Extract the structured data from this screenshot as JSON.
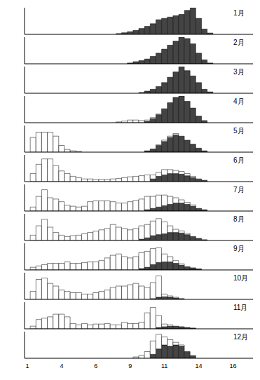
{
  "chart_data": [
    {
      "type": "bar",
      "title": "1月",
      "stacked": true,
      "tick_labels": false,
      "ylim": [
        0,
        100
      ],
      "series": [
        {
          "color": "#444444",
          "values": [
            0,
            0,
            0,
            0,
            0,
            0,
            0,
            0,
            0,
            0,
            0,
            0,
            0,
            0,
            0,
            0,
            3,
            6,
            10,
            15,
            22,
            30,
            40,
            55,
            60,
            65,
            70,
            75,
            90,
            100,
            60,
            20,
            5,
            0,
            0,
            0,
            0,
            0,
            0,
            0
          ]
        },
        {
          "color": "#ffffff",
          "values": [
            0,
            0,
            0,
            0,
            0,
            0,
            0,
            0,
            0,
            0,
            0,
            0,
            0,
            0,
            0,
            0,
            0,
            0,
            0,
            0,
            0,
            0,
            0,
            0,
            0,
            0,
            0,
            0,
            0,
            0,
            0,
            0,
            0,
            0,
            0,
            0,
            0,
            0,
            0,
            0
          ]
        }
      ]
    },
    {
      "type": "bar",
      "title": "2月",
      "stacked": true,
      "tick_labels": false,
      "ylim": [
        0,
        100
      ],
      "series": [
        {
          "color": "#444444",
          "values": [
            0,
            0,
            0,
            0,
            0,
            0,
            0,
            0,
            0,
            0,
            0,
            0,
            0,
            0,
            0,
            0,
            0,
            0,
            3,
            8,
            12,
            18,
            28,
            40,
            55,
            70,
            85,
            100,
            95,
            75,
            40,
            15,
            3,
            0,
            0,
            0,
            0,
            0,
            0,
            0
          ]
        },
        {
          "color": "#ffffff",
          "values": [
            0,
            0,
            0,
            0,
            0,
            0,
            0,
            0,
            0,
            0,
            0,
            0,
            0,
            0,
            0,
            0,
            0,
            0,
            0,
            0,
            0,
            0,
            0,
            0,
            0,
            0,
            0,
            0,
            0,
            0,
            0,
            0,
            0,
            0,
            0,
            0,
            0,
            0,
            0,
            0
          ]
        }
      ]
    },
    {
      "type": "bar",
      "title": "3月",
      "stacked": true,
      "tick_labels": false,
      "ylim": [
        0,
        100
      ],
      "series": [
        {
          "color": "#444444",
          "values": [
            0,
            0,
            0,
            0,
            0,
            0,
            0,
            0,
            0,
            0,
            0,
            0,
            0,
            0,
            0,
            0,
            0,
            0,
            0,
            0,
            3,
            8,
            15,
            25,
            40,
            60,
            80,
            100,
            85,
            65,
            40,
            15,
            5,
            0,
            0,
            0,
            0,
            0,
            0,
            0
          ]
        },
        {
          "color": "#ffffff",
          "values": [
            0,
            0,
            0,
            0,
            0,
            0,
            0,
            0,
            0,
            0,
            0,
            0,
            0,
            0,
            0,
            0,
            0,
            0,
            0,
            0,
            0,
            0,
            0,
            0,
            0,
            0,
            0,
            0,
            0,
            0,
            0,
            0,
            0,
            0,
            0,
            0,
            0,
            0,
            0,
            0
          ]
        }
      ]
    },
    {
      "type": "bar",
      "title": "4月",
      "stacked": true,
      "tick_labels": false,
      "ylim": [
        0,
        100
      ],
      "series": [
        {
          "color": "#444444",
          "values": [
            0,
            0,
            0,
            0,
            0,
            0,
            0,
            0,
            0,
            0,
            0,
            0,
            0,
            0,
            0,
            0,
            0,
            0,
            0,
            0,
            0,
            5,
            15,
            30,
            50,
            75,
            95,
            100,
            80,
            55,
            25,
            8,
            0,
            0,
            0,
            0,
            0,
            0,
            0,
            0
          ]
        },
        {
          "color": "#ffffff",
          "values": [
            0,
            0,
            0,
            0,
            0,
            0,
            0,
            0,
            0,
            0,
            0,
            0,
            0,
            0,
            0,
            0,
            3,
            6,
            10,
            10,
            8,
            5,
            4,
            3,
            3,
            0,
            0,
            0,
            0,
            0,
            0,
            0,
            0,
            0,
            0,
            0,
            0,
            0,
            0,
            0
          ]
        }
      ]
    },
    {
      "type": "bar",
      "title": "5月",
      "stacked": true,
      "tick_labels": false,
      "ylim": [
        0,
        100
      ],
      "series": [
        {
          "color": "#444444",
          "values": [
            0,
            0,
            0,
            0,
            0,
            0,
            0,
            0,
            0,
            0,
            0,
            0,
            0,
            0,
            0,
            0,
            0,
            0,
            0,
            0,
            0,
            5,
            12,
            25,
            40,
            55,
            65,
            60,
            45,
            30,
            15,
            5,
            0,
            0,
            0,
            0,
            0,
            0,
            0,
            0
          ]
        },
        {
          "color": "#ffffff",
          "values": [
            0,
            55,
            75,
            75,
            75,
            60,
            25,
            10,
            5,
            3,
            0,
            0,
            0,
            0,
            0,
            0,
            0,
            0,
            0,
            0,
            0,
            0,
            0,
            3,
            5,
            5,
            5,
            0,
            0,
            0,
            0,
            0,
            0,
            0,
            0,
            0,
            0,
            0,
            0,
            0
          ]
        }
      ]
    },
    {
      "type": "bar",
      "title": "6月",
      "stacked": true,
      "tick_labels": false,
      "ylim": [
        0,
        100
      ],
      "series": [
        {
          "color": "#444444",
          "values": [
            0,
            0,
            0,
            0,
            0,
            0,
            0,
            0,
            0,
            0,
            0,
            0,
            0,
            0,
            0,
            0,
            0,
            0,
            0,
            0,
            0,
            0,
            10,
            20,
            25,
            30,
            30,
            28,
            22,
            15,
            10,
            5,
            0,
            0,
            0,
            0,
            0,
            0,
            0,
            0
          ]
        },
        {
          "color": "#ffffff",
          "values": [
            0,
            30,
            65,
            85,
            85,
            60,
            40,
            30,
            20,
            15,
            10,
            10,
            8,
            8,
            8,
            10,
            12,
            15,
            18,
            20,
            22,
            25,
            15,
            15,
            20,
            15,
            12,
            10,
            8,
            5,
            0,
            0,
            0,
            0,
            0,
            0,
            0,
            0,
            0,
            0
          ]
        }
      ]
    },
    {
      "type": "bar",
      "title": "7月",
      "stacked": true,
      "tick_labels": false,
      "ylim": [
        0,
        100
      ],
      "series": [
        {
          "color": "#444444",
          "values": [
            0,
            0,
            0,
            0,
            0,
            0,
            0,
            0,
            0,
            0,
            0,
            0,
            0,
            0,
            0,
            0,
            0,
            0,
            0,
            0,
            0,
            5,
            10,
            15,
            20,
            25,
            30,
            30,
            25,
            18,
            10,
            5,
            0,
            0,
            0,
            0,
            0,
            0,
            0,
            0
          ]
        },
        {
          "color": "#ffffff",
          "values": [
            0,
            15,
            55,
            80,
            50,
            45,
            35,
            22,
            18,
            15,
            18,
            35,
            38,
            38,
            38,
            35,
            30,
            30,
            35,
            40,
            45,
            50,
            45,
            45,
            40,
            30,
            20,
            12,
            8,
            5,
            0,
            0,
            0,
            0,
            0,
            0,
            0,
            0,
            0,
            0
          ]
        }
      ]
    },
    {
      "type": "bar",
      "title": "8月",
      "stacked": true,
      "tick_labels": false,
      "ylim": [
        0,
        100
      ],
      "series": [
        {
          "color": "#444444",
          "values": [
            0,
            0,
            0,
            0,
            0,
            0,
            0,
            0,
            0,
            0,
            0,
            0,
            0,
            0,
            0,
            0,
            0,
            0,
            0,
            0,
            5,
            10,
            18,
            22,
            25,
            30,
            30,
            28,
            22,
            15,
            8,
            3,
            0,
            0,
            0,
            0,
            0,
            0,
            0,
            0
          ]
        },
        {
          "color": "#ffffff",
          "values": [
            0,
            20,
            55,
            80,
            50,
            30,
            20,
            15,
            18,
            20,
            25,
            30,
            35,
            40,
            45,
            60,
            50,
            45,
            40,
            45,
            50,
            50,
            55,
            60,
            45,
            25,
            12,
            8,
            5,
            0,
            0,
            0,
            0,
            0,
            0,
            0,
            0,
            0,
            0,
            0
          ]
        }
      ]
    },
    {
      "type": "bar",
      "title": "9月",
      "stacked": true,
      "tick_labels": false,
      "ylim": [
        0,
        100
      ],
      "series": [
        {
          "color": "#444444",
          "values": [
            0,
            0,
            0,
            0,
            0,
            0,
            0,
            0,
            0,
            0,
            0,
            0,
            0,
            0,
            0,
            0,
            0,
            0,
            0,
            0,
            5,
            10,
            20,
            28,
            30,
            30,
            25,
            18,
            12,
            8,
            4,
            0,
            0,
            0,
            0,
            0,
            0,
            0,
            0,
            0
          ]
        },
        {
          "color": "#ffffff",
          "values": [
            0,
            10,
            15,
            20,
            25,
            25,
            25,
            30,
            25,
            25,
            28,
            30,
            30,
            35,
            45,
            55,
            60,
            50,
            45,
            50,
            60,
            60,
            60,
            55,
            30,
            20,
            10,
            5,
            0,
            0,
            0,
            0,
            0,
            0,
            0,
            0,
            0,
            0,
            0,
            0
          ]
        }
      ]
    },
    {
      "type": "bar",
      "title": "10月",
      "stacked": true,
      "tick_labels": false,
      "ylim": [
        0,
        100
      ],
      "series": [
        {
          "color": "#444444",
          "values": [
            0,
            0,
            0,
            0,
            0,
            0,
            0,
            0,
            0,
            0,
            0,
            0,
            0,
            0,
            0,
            0,
            0,
            0,
            0,
            0,
            0,
            0,
            3,
            8,
            10,
            8,
            5,
            3,
            0,
            0,
            0,
            0,
            0,
            0,
            0,
            0,
            0,
            0,
            0,
            0
          ]
        },
        {
          "color": "#ffffff",
          "values": [
            0,
            30,
            75,
            80,
            60,
            50,
            35,
            30,
            25,
            25,
            20,
            20,
            25,
            30,
            35,
            45,
            50,
            50,
            55,
            60,
            50,
            45,
            60,
            80,
            10,
            5,
            3,
            0,
            0,
            0,
            0,
            0,
            0,
            0,
            0,
            0,
            0,
            0,
            0,
            0
          ]
        }
      ]
    },
    {
      "type": "bar",
      "title": "11月",
      "stacked": true,
      "tick_labels": false,
      "ylim": [
        0,
        100
      ],
      "series": [
        {
          "color": "#444444",
          "values": [
            0,
            0,
            0,
            0,
            0,
            0,
            0,
            0,
            0,
            0,
            0,
            0,
            0,
            0,
            0,
            0,
            0,
            0,
            0,
            0,
            0,
            0,
            0,
            5,
            8,
            10,
            10,
            8,
            5,
            3,
            0,
            0,
            0,
            0,
            0,
            0,
            0,
            0,
            0,
            0
          ]
        },
        {
          "color": "#ffffff",
          "values": [
            0,
            10,
            35,
            40,
            45,
            55,
            55,
            45,
            20,
            15,
            20,
            15,
            18,
            18,
            20,
            15,
            15,
            25,
            20,
            20,
            25,
            60,
            80,
            45,
            10,
            5,
            0,
            0,
            0,
            0,
            0,
            0,
            0,
            0,
            0,
            0,
            0,
            0,
            0,
            0
          ]
        }
      ]
    },
    {
      "type": "bar",
      "title": "12月",
      "stacked": true,
      "tick_labels": "x",
      "ylim": [
        0,
        100
      ],
      "categories": [
        "1",
        null,
        null,
        null,
        null,
        null,
        "4",
        null,
        null,
        null,
        null,
        null,
        "6",
        null,
        null,
        null,
        null,
        null,
        "9",
        null,
        null,
        null,
        null,
        null,
        "11",
        null,
        null,
        null,
        null,
        null,
        "14",
        null,
        null,
        null,
        null,
        null,
        "16",
        null,
        null,
        null
      ],
      "series": [
        {
          "color": "#444444",
          "values": [
            0,
            0,
            0,
            0,
            0,
            0,
            0,
            0,
            0,
            0,
            0,
            0,
            0,
            0,
            0,
            0,
            0,
            0,
            0,
            0,
            0,
            0,
            15,
            35,
            50,
            45,
            50,
            45,
            25,
            10,
            0,
            0,
            0,
            0,
            0,
            0,
            0,
            0,
            0,
            0
          ]
        },
        {
          "color": "#ffffff",
          "values": [
            0,
            0,
            0,
            0,
            0,
            0,
            0,
            0,
            0,
            0,
            0,
            0,
            0,
            0,
            0,
            0,
            0,
            0,
            0,
            5,
            10,
            25,
            50,
            55,
            30,
            25,
            10,
            5,
            0,
            0,
            0,
            0,
            0,
            0,
            0,
            0,
            0,
            0,
            0,
            0
          ]
        }
      ]
    }
  ]
}
